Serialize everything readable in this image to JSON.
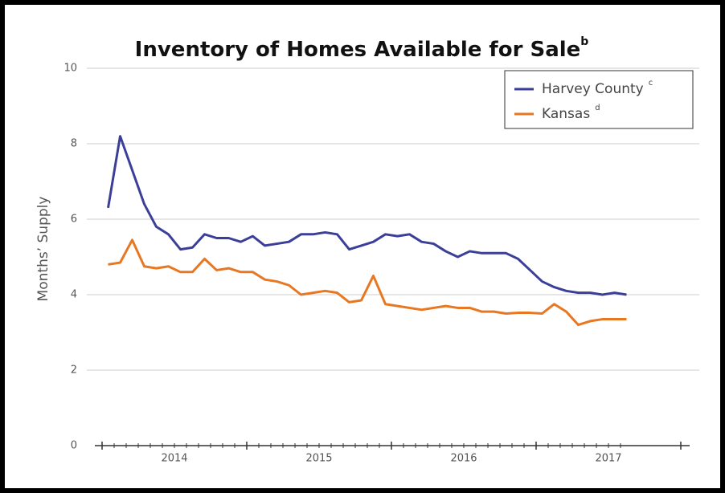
{
  "chart_data": {
    "type": "line",
    "title": "Inventory of Homes Available for Sale",
    "title_note": "b",
    "y_label": "Months’ Supply",
    "categories": [
      null,
      null,
      null,
      null,
      null,
      null,
      null,
      null,
      null,
      null,
      null,
      null,
      null,
      null,
      null,
      null,
      null,
      null,
      null,
      null,
      null,
      null,
      null,
      null,
      null,
      null,
      null,
      null,
      null,
      null,
      null,
      null,
      null,
      null,
      null,
      null,
      null,
      null,
      null,
      null,
      null,
      null,
      null,
      null
    ],
    "year_labels": [
      "2014",
      "2015",
      "2016",
      "2017"
    ],
    "series": [
      {
        "name": "Harvey County",
        "note": "c",
        "color": "#3b3f98",
        "values": [
          6.3,
          8.2,
          7.3,
          6.4,
          5.8,
          5.6,
          5.2,
          5.25,
          5.6,
          5.5,
          5.5,
          5.4,
          5.55,
          5.3,
          5.35,
          5.4,
          5.6,
          5.6,
          5.65,
          5.6,
          5.2,
          5.3,
          5.4,
          5.6,
          5.55,
          5.6,
          5.4,
          5.35,
          5.15,
          5.0,
          5.15,
          5.1,
          5.1,
          5.1,
          4.95,
          4.65,
          4.35,
          4.2,
          4.1,
          4.05,
          4.05,
          4.0,
          4.05,
          4.0
        ]
      },
      {
        "name": "Kansas",
        "note": "d",
        "color": "#e87722",
        "values": [
          4.8,
          4.85,
          5.45,
          4.75,
          4.7,
          4.75,
          4.6,
          4.6,
          4.95,
          4.65,
          4.7,
          4.6,
          4.6,
          4.4,
          4.35,
          4.25,
          4.0,
          4.05,
          4.1,
          4.05,
          3.8,
          3.85,
          4.5,
          3.75,
          3.7,
          3.65,
          3.6,
          3.65,
          3.7,
          3.65,
          3.65,
          3.55,
          3.55,
          3.5,
          3.52,
          3.52,
          3.5,
          3.75,
          3.55,
          3.2,
          3.3,
          3.35,
          3.35,
          3.35
        ]
      }
    ],
    "ylim": [
      0,
      10
    ],
    "yticks": [
      0,
      2,
      4,
      6,
      8,
      10
    ],
    "grid": true,
    "legend": "upper right"
  }
}
